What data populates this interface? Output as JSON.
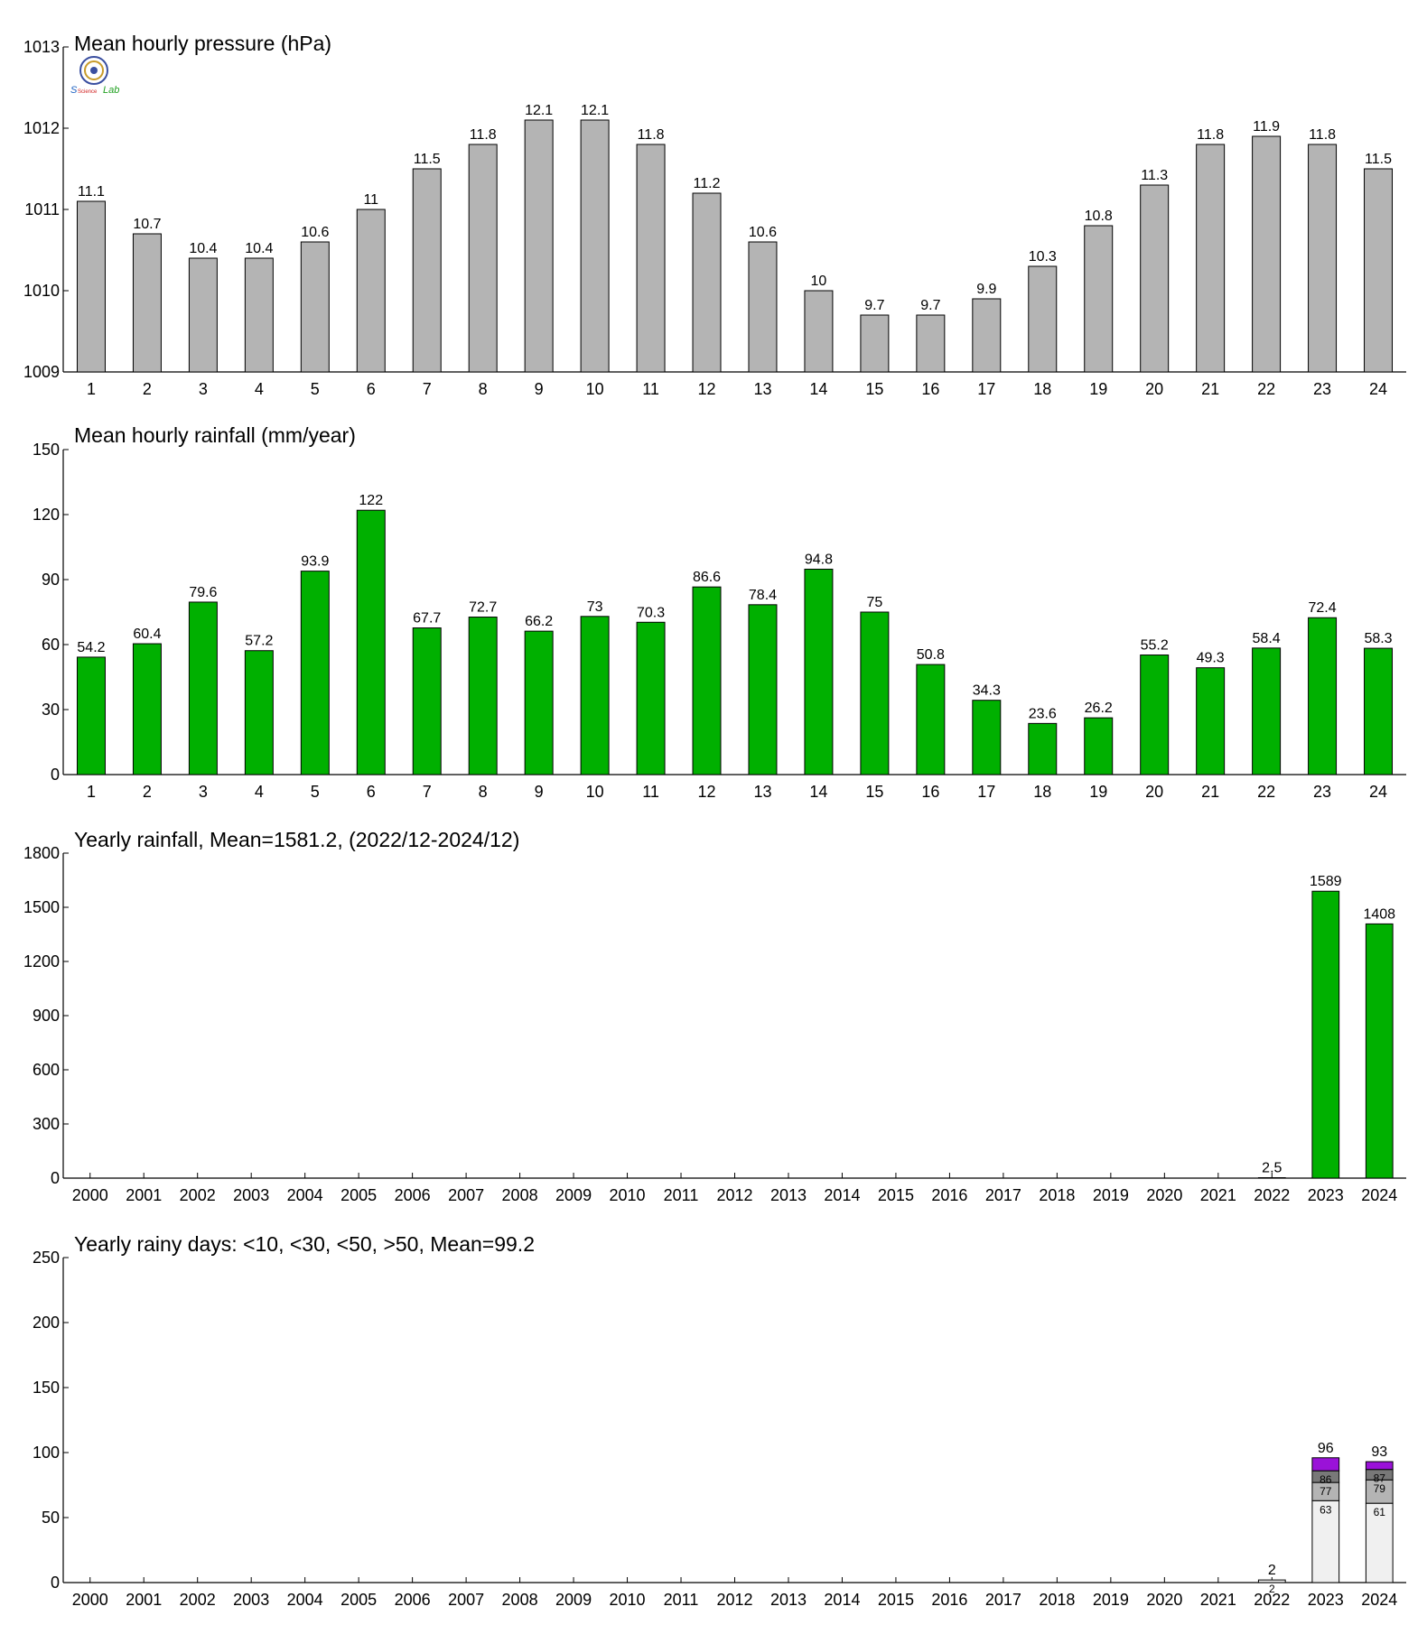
{
  "colors": {
    "grey_bar": "#b4b4b4",
    "green_bar": "#00b000",
    "stack_lt10": "#f0f0f0",
    "stack_lt30": "#b4b4b4",
    "stack_lt50": "#787878",
    "stack_gt50": "#9a12d8",
    "logo": "logo-seal-icon"
  },
  "chart_data": [
    {
      "type": "bar",
      "title": "Mean hourly pressure (hPa)",
      "categories": [
        "1",
        "2",
        "3",
        "4",
        "5",
        "6",
        "7",
        "8",
        "9",
        "10",
        "11",
        "12",
        "13",
        "14",
        "15",
        "16",
        "17",
        "18",
        "19",
        "20",
        "21",
        "22",
        "23",
        "24"
      ],
      "values": [
        1011.1,
        1010.7,
        1010.4,
        1010.4,
        1010.6,
        1011.0,
        1011.5,
        1011.8,
        1012.1,
        1012.1,
        1011.8,
        1011.2,
        1010.6,
        1010.0,
        1009.7,
        1009.7,
        1009.9,
        1010.3,
        1010.8,
        1011.3,
        1011.8,
        1011.9,
        1011.8,
        1011.5
      ],
      "labels": [
        "11.1",
        "10.7",
        "10.4",
        "10.4",
        "10.6",
        "11",
        "11.5",
        "11.8",
        "12.1",
        "12.1",
        "11.8",
        "11.2",
        "10.6",
        "10",
        "9.7",
        "9.7",
        "9.9",
        "10.3",
        "10.8",
        "11.3",
        "11.8",
        "11.9",
        "11.8",
        "11.5"
      ],
      "ylim": [
        1009,
        1013
      ],
      "yticks": [
        "1009",
        "1010",
        "1011",
        "1012",
        "1013"
      ],
      "color": "#b4b4b4"
    },
    {
      "type": "bar",
      "title": "Mean hourly rainfall (mm/year)",
      "categories": [
        "1",
        "2",
        "3",
        "4",
        "5",
        "6",
        "7",
        "8",
        "9",
        "10",
        "11",
        "12",
        "13",
        "14",
        "15",
        "16",
        "17",
        "18",
        "19",
        "20",
        "21",
        "22",
        "23",
        "24"
      ],
      "values": [
        54.2,
        60.4,
        79.6,
        57.2,
        93.9,
        122,
        67.7,
        72.7,
        66.2,
        73,
        70.3,
        86.6,
        78.4,
        94.8,
        75,
        50.8,
        34.3,
        23.6,
        26.2,
        55.2,
        49.3,
        58.4,
        72.4,
        58.3
      ],
      "labels": [
        "54.2",
        "60.4",
        "79.6",
        "57.2",
        "93.9",
        "122",
        "67.7",
        "72.7",
        "66.2",
        "73",
        "70.3",
        "86.6",
        "78.4",
        "94.8",
        "75",
        "50.8",
        "34.3",
        "23.6",
        "26.2",
        "55.2",
        "49.3",
        "58.4",
        "72.4",
        "58.3"
      ],
      "ylim": [
        0,
        150
      ],
      "yticks": [
        "0",
        "30",
        "60",
        "90",
        "120",
        "150"
      ],
      "color": "#00b000"
    },
    {
      "type": "bar",
      "title": "Yearly rainfall, Mean=1581.2, (2022/12-2024/12)",
      "categories": [
        "2000",
        "2001",
        "2002",
        "2003",
        "2004",
        "2005",
        "2006",
        "2007",
        "2008",
        "2009",
        "2010",
        "2011",
        "2012",
        "2013",
        "2014",
        "2015",
        "2016",
        "2017",
        "2018",
        "2019",
        "2020",
        "2021",
        "2022",
        "2023",
        "2024"
      ],
      "values": [
        null,
        null,
        null,
        null,
        null,
        null,
        null,
        null,
        null,
        null,
        null,
        null,
        null,
        null,
        null,
        null,
        null,
        null,
        null,
        null,
        null,
        null,
        2.5,
        1589,
        1408
      ],
      "labels": [
        "",
        "",
        "",
        "",
        "",
        "",
        "",
        "",
        "",
        "",
        "",
        "",
        "",
        "",
        "",
        "",
        "",
        "",
        "",
        "",
        "",
        "",
        "2.5",
        "1589",
        "1408"
      ],
      "ylim": [
        0,
        1800
      ],
      "yticks": [
        "0",
        "300",
        "600",
        "900",
        "1200",
        "1500",
        "1800"
      ],
      "color": "#00b000"
    },
    {
      "type": "bar",
      "stacked": true,
      "title": "Yearly rainy days: <10, <30, <50, >50, Mean=99.2",
      "categories": [
        "2000",
        "2001",
        "2002",
        "2003",
        "2004",
        "2005",
        "2006",
        "2007",
        "2008",
        "2009",
        "2010",
        "2011",
        "2012",
        "2013",
        "2014",
        "2015",
        "2016",
        "2017",
        "2018",
        "2019",
        "2020",
        "2021",
        "2022",
        "2023",
        "2024"
      ],
      "stacks": [
        {
          "category": "2022",
          "cumulative": [
            2,
            2,
            2,
            2
          ],
          "inner_labels": [
            "2"
          ],
          "total_label": "2"
        },
        {
          "category": "2023",
          "cumulative": [
            63,
            77,
            86,
            96
          ],
          "inner_labels": [
            "63",
            "77",
            "86"
          ],
          "total_label": "96"
        },
        {
          "category": "2024",
          "cumulative": [
            61,
            79,
            87,
            93
          ],
          "inner_labels": [
            "61",
            "79",
            "87"
          ],
          "total_label": "93"
        }
      ],
      "ylim": [
        0,
        250
      ],
      "yticks": [
        "0",
        "50",
        "100",
        "150",
        "200",
        "250"
      ]
    }
  ]
}
